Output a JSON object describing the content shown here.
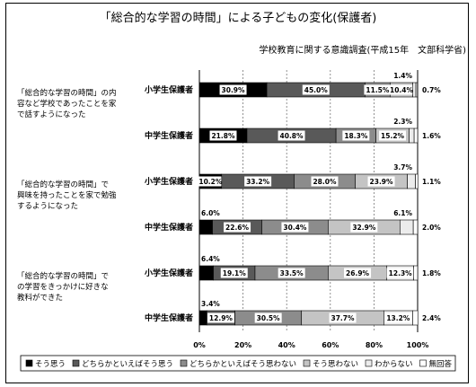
{
  "chart_data": {
    "type": "bar",
    "stacked": "percent",
    "orientation": "horizontal",
    "title": "「総合的な学習の時間」による子どもの変化(保護者)",
    "subtitle": "学校教育に関する意識調査(平成15年　文部科学省)",
    "xlim": [
      0,
      100
    ],
    "x_ticks": [
      "0%",
      "20%",
      "40%",
      "60%",
      "80%",
      "100%"
    ],
    "grid": true,
    "legend_position": "bottom",
    "categories": [
      "そう思う",
      "どちらかといえばそう思う",
      "どちらかといえばそう思わない",
      "そう思わない",
      "わからない",
      "無回答"
    ],
    "colors": [
      "#000000",
      "#595959",
      "#8c8c8c",
      "#c4c4c4",
      "#ececec",
      "#ffffff"
    ],
    "groups": [
      {
        "question": "「総合的な学習の時間」の内容など学校であったことを家で話すようになった",
        "question_lines": [
          "「総合的な学習の時間」の内",
          "容など学校であったことを家",
          "で話すようになった"
        ],
        "rows": [
          {
            "label": "小学生保護者",
            "values": [
              30.9,
              45.0,
              11.5,
              10.4,
              1.4,
              0.7
            ],
            "texts": [
              "30.9%",
              "45.0%",
              "11.5%",
              "10.4%",
              "1.4%",
              "0.7%"
            ]
          },
          {
            "label": "中学生保護者",
            "values": [
              21.8,
              40.8,
              18.3,
              15.2,
              2.3,
              1.6
            ],
            "texts": [
              "21.8%",
              "40.8%",
              "18.3%",
              "15.2%",
              "2.3%",
              "1.6%"
            ]
          }
        ]
      },
      {
        "question": "「総合的な学習の時間」で興味を持ったことを家で勉強するようになった",
        "question_lines": [
          "「総合的な学習の時間」で",
          "興味を持ったことを家で勉強",
          "するようになった"
        ],
        "rows": [
          {
            "label": "小学生保護者",
            "values": [
              10.2,
              33.2,
              28.0,
              23.9,
              3.7,
              1.1
            ],
            "texts": [
              "10.2%",
              "33.2%",
              "28.0%",
              "23.9%",
              "3.7%",
              "1.1%"
            ]
          },
          {
            "label": "中学生保護者",
            "values": [
              6.0,
              22.6,
              30.4,
              32.9,
              6.1,
              2.0
            ],
            "texts": [
              "6.0%",
              "22.6%",
              "30.4%",
              "32.9%",
              "6.1%",
              "2.0%"
            ]
          }
        ]
      },
      {
        "question": "「総合的な学習の時間」での学習をきっかけに好きな教科ができた",
        "question_lines": [
          "「総合的な学習の時間」で",
          "の学習をきっかけに好きな",
          "教科ができた"
        ],
        "rows": [
          {
            "label": "小学生保護者",
            "values": [
              6.4,
              19.1,
              33.5,
              26.9,
              12.3,
              1.8
            ],
            "texts": [
              "6.4%",
              "19.1%",
              "33.5%",
              "26.9%",
              "12.3%",
              "1.8%"
            ]
          },
          {
            "label": "中学生保護者",
            "values": [
              3.4,
              12.9,
              30.5,
              37.7,
              13.2,
              2.4
            ],
            "texts": [
              "3.4%",
              "12.9%",
              "30.5%",
              "37.7%",
              "13.2%",
              "2.4%"
            ]
          }
        ]
      }
    ]
  }
}
